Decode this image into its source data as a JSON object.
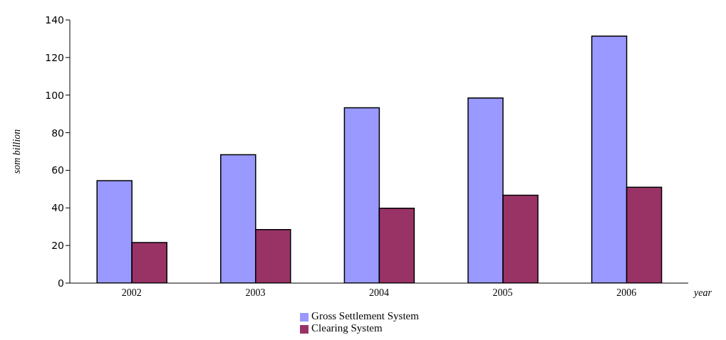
{
  "chart_data": {
    "type": "bar",
    "xlabel": "year",
    "ylabel": "som billion",
    "categories": [
      "2002",
      "2003",
      "2004",
      "2005",
      "2006"
    ],
    "series": [
      {
        "name": "Gross Settlement System",
        "color": "#9999ff",
        "values": [
          54.5,
          68.3,
          93.3,
          98.5,
          131.4
        ]
      },
      {
        "name": "Clearing System",
        "color": "#993366",
        "values": [
          21.6,
          28.5,
          39.8,
          46.7,
          51
        ]
      }
    ],
    "ylim": [
      0,
      140
    ],
    "yticks": [
      0,
      20,
      40,
      60,
      80,
      100,
      120,
      140
    ],
    "grid": false,
    "legend": "bottom"
  }
}
